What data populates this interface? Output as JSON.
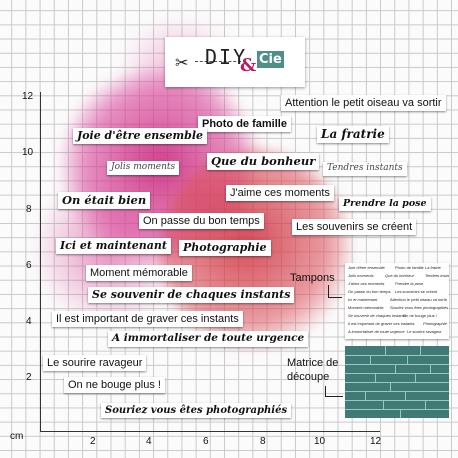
{
  "logo": {
    "text_diy": "DIY",
    "text_amp": "&",
    "text_cie": "Cie",
    "icon": "scissors-icon"
  },
  "axis": {
    "unit": "cm",
    "x_ticks": [
      "2",
      "4",
      "6",
      "8",
      "10",
      "12"
    ],
    "y_ticks": [
      "12",
      "10",
      "8",
      "6",
      "4",
      "2"
    ]
  },
  "stamps": [
    "Attention le petit oiseau va sortir",
    "Photo de famille",
    "Joie d'être ensemble",
    "La fratrie",
    "Jolis moments",
    "Que du bonheur",
    "Tendres instants",
    "J'aime ces moments",
    "On était bien",
    "Prendre la pose",
    "On passe du bon temps",
    "Les souvenirs se créent",
    "Ici et maintenant",
    "Photographie",
    "Moment mémorable",
    "Se souvenir de chaques instants",
    "Il est important de graver ces instants",
    "A immortaliser de toute urgence",
    "Le sourire ravageur",
    "On ne bouge plus !",
    "Souriez vous êtes photographiés"
  ],
  "callouts": {
    "stamps_label": "Tampons",
    "die_label_line1": "Matrice de",
    "die_label_line2": "découpe"
  },
  "colors": {
    "splash_pink": "#c2185b",
    "splash_red": "#d2373f",
    "die_cut": "#3f7a74"
  }
}
